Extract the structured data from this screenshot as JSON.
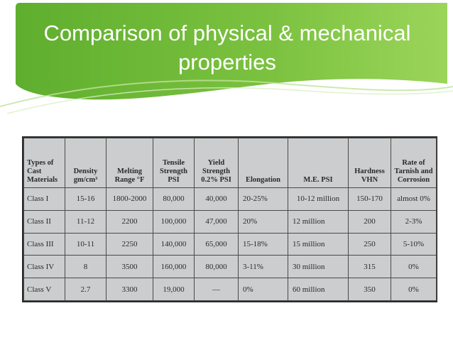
{
  "slide": {
    "title": "Comparison of physical & mechanical properties",
    "accent_color": "#7cc240"
  },
  "table": {
    "headers": [
      "Types of Cast Materials",
      "Density gm/cm³",
      "Melting Range °F",
      "Tensile Strength PSI",
      "Yield Strength 0.2% PSI",
      "Elongation",
      "M.E. PSI",
      "Hardness VHN",
      "Rate of Tarnish and Corrosion"
    ],
    "rows": [
      [
        "Class I",
        "15-16",
        "1800-2000",
        "80,000",
        "40,000",
        "20-25%",
        "10-12 million",
        "150-170",
        "almost 0%"
      ],
      [
        "Class II",
        "11-12",
        "2200",
        "100,000",
        "47,000",
        "20%",
        "12 million",
        "200",
        "2-3%"
      ],
      [
        "Class III",
        "10-11",
        "2250",
        "140,000",
        "65,000",
        "15-18%",
        "15 million",
        "250",
        "5-10%"
      ],
      [
        "Class IV",
        "8",
        "3500",
        "160,000",
        "80,000",
        "3-11%",
        "30 million",
        "315",
        "0%"
      ],
      [
        "Class V",
        "2.7",
        "3300",
        "19,000",
        "—",
        "0%",
        "60 million",
        "350",
        "0%"
      ]
    ]
  }
}
